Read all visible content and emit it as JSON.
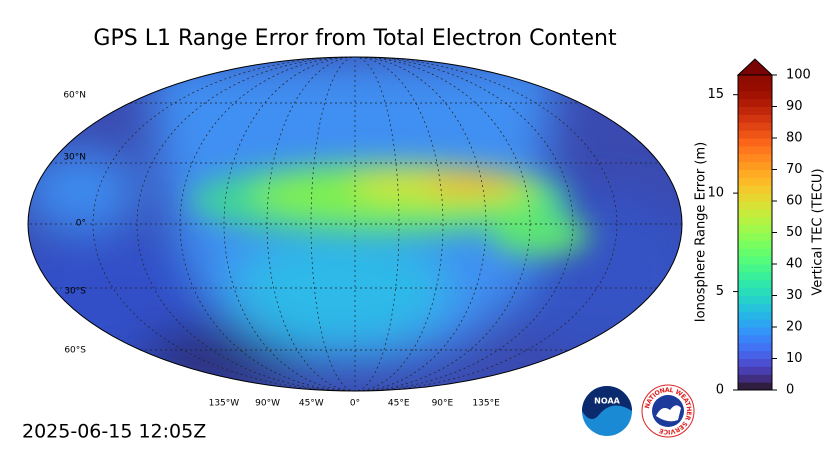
{
  "title": "GPS L1 Range Error from Total Electron Content",
  "map": {
    "lat_labels": [
      "60°N",
      "30°N",
      "0°",
      "30°S",
      "60°S"
    ],
    "lon_labels": [
      "135°W",
      "90°W",
      "45°W",
      "0°",
      "45°E",
      "90°E",
      "135°E"
    ]
  },
  "colorbar": {
    "left_label": "Ionosphere Range Error (m)",
    "left_lim": [
      0,
      16
    ],
    "left_ticks": [
      0,
      5,
      10,
      15
    ],
    "right_label": "Vertical TEC (TECU)",
    "right_lim": [
      0,
      100
    ],
    "right_ticks": [
      0,
      10,
      20,
      30,
      40,
      50,
      60,
      70,
      80,
      90,
      100
    ]
  },
  "timestamp": "2025-06-15 12:05Z",
  "logos": {
    "noaa": "NOAA",
    "nws": "NATIONAL WEATHER SERVICE"
  }
}
